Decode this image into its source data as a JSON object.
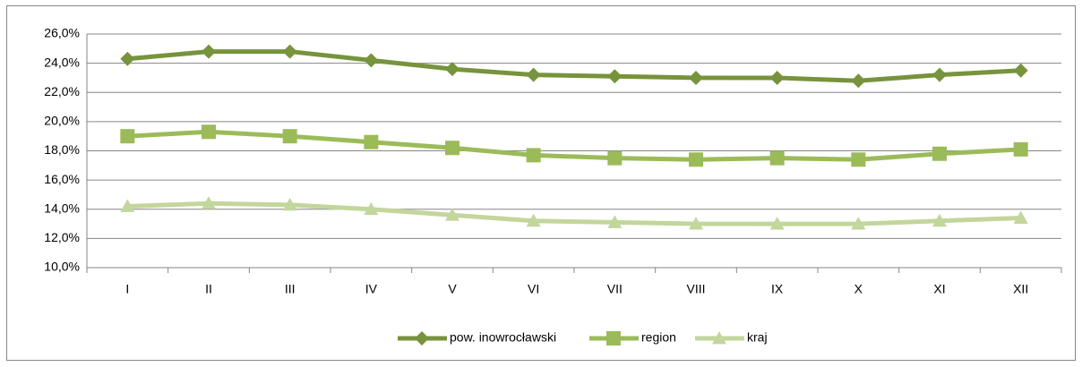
{
  "chart_data": {
    "type": "line",
    "categories": [
      "I",
      "II",
      "III",
      "IV",
      "V",
      "VI",
      "VII",
      "VIII",
      "IX",
      "X",
      "XI",
      "XII"
    ],
    "series": [
      {
        "name": "pow. inowrocławski",
        "color": "#77933c",
        "marker": "diamond",
        "values": [
          24.3,
          24.8,
          24.8,
          24.2,
          23.6,
          23.2,
          23.1,
          23.0,
          23.0,
          22.8,
          23.2,
          23.5
        ]
      },
      {
        "name": "region",
        "color": "#9bbb59",
        "marker": "square",
        "values": [
          19.0,
          19.3,
          19.0,
          18.6,
          18.2,
          17.7,
          17.5,
          17.4,
          17.5,
          17.4,
          17.8,
          18.1
        ]
      },
      {
        "name": "kraj",
        "color": "#c3d69b",
        "marker": "triangle",
        "values": [
          14.2,
          14.4,
          14.3,
          14.0,
          13.6,
          13.2,
          13.1,
          13.0,
          13.0,
          13.0,
          13.2,
          13.4
        ]
      }
    ],
    "ylim": [
      10,
      26
    ],
    "yticks": [
      {
        "value": 10,
        "label": "10,0%"
      },
      {
        "value": 12,
        "label": "12,0%"
      },
      {
        "value": 14,
        "label": "14,0%"
      },
      {
        "value": 16,
        "label": "16,0%"
      },
      {
        "value": 18,
        "label": "18,0%"
      },
      {
        "value": 20,
        "label": "20,0%"
      },
      {
        "value": 22,
        "label": "22,0%"
      },
      {
        "value": 24,
        "label": "24,0%"
      },
      {
        "value": 26,
        "label": "26,0%"
      }
    ],
    "grid": true,
    "legend": "bottom"
  }
}
